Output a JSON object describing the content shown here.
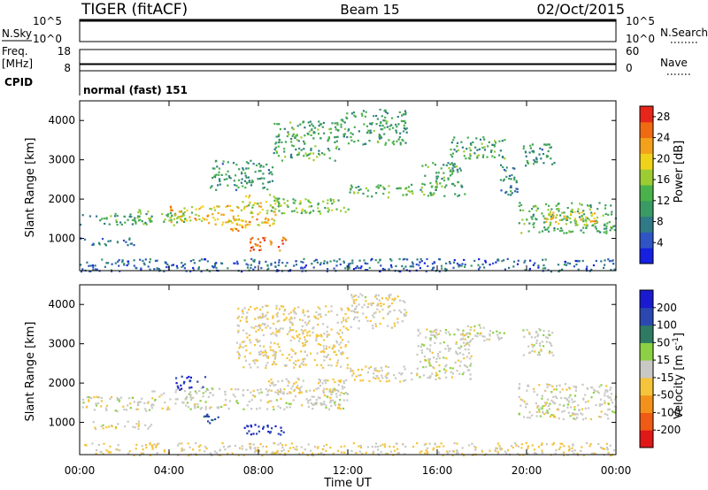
{
  "header": {
    "radar": "TIGER (fitACF)",
    "beam": "Beam 15",
    "date": "02/Oct/2015"
  },
  "top_panels": {
    "nsky": {
      "label": "N.Sky",
      "ticks": [
        "10^5",
        "10^0"
      ]
    },
    "nsearch": {
      "label": "N.Search",
      "ticks": [
        "10^5",
        "10^0"
      ]
    },
    "freq": {
      "label": "Freq.",
      "unit": "[MHz]",
      "ticks": [
        "18",
        "8"
      ]
    },
    "nave": {
      "label": "Nave",
      "ticks": [
        "60",
        "0"
      ]
    },
    "cpid": {
      "label": "CPID",
      "mode": "normal (fast) 151"
    }
  },
  "chart_data": [
    {
      "type": "heatmap",
      "name": "power",
      "ylabel": "Slant Range [km]",
      "xlabel": "",
      "y_ticks": [
        "4000",
        "3000",
        "2000",
        "1000"
      ],
      "ylim": [
        180,
        4500
      ],
      "xlim": [
        0,
        24
      ],
      "colorbar": {
        "label": "Power [dB]",
        "ticks": [
          "28",
          "24",
          "20",
          "16",
          "12",
          "8",
          "4"
        ],
        "range": [
          0,
          30
        ],
        "colors": [
          "#1520e0",
          "#2f55c4",
          "#2f7a86",
          "#3a9a63",
          "#4ab24a",
          "#9ccc32",
          "#f0d21a",
          "#f3a11a",
          "#ef6a12",
          "#e6261a"
        ]
      },
      "regions": [
        {
          "t0": 0.0,
          "t1": 3.2,
          "r0": 1350,
          "r1": 1650,
          "level": 11
        },
        {
          "t0": 0.0,
          "t1": 2.5,
          "r0": 850,
          "r1": 1050,
          "level": 7
        },
        {
          "t0": 2.5,
          "t1": 5.0,
          "r0": 1400,
          "r1": 1750,
          "level": 14
        },
        {
          "t0": 4.0,
          "t1": 8.8,
          "r0": 1350,
          "r1": 1850,
          "level": 20
        },
        {
          "t0": 6.2,
          "t1": 7.6,
          "r0": 1200,
          "r1": 1500,
          "level": 22
        },
        {
          "t0": 7.6,
          "t1": 9.2,
          "r0": 700,
          "r1": 1050,
          "level": 25
        },
        {
          "t0": 7.2,
          "t1": 9.0,
          "r0": 1800,
          "r1": 2150,
          "level": 18
        },
        {
          "t0": 8.5,
          "t1": 12.0,
          "r0": 1650,
          "r1": 2050,
          "level": 14
        },
        {
          "t0": 12.0,
          "t1": 14.9,
          "r0": 2050,
          "r1": 2400,
          "level": 13
        },
        {
          "t0": 5.8,
          "t1": 8.6,
          "r0": 2250,
          "r1": 3000,
          "level": 10
        },
        {
          "t0": 8.6,
          "t1": 11.6,
          "r0": 3000,
          "r1": 4000,
          "level": 12
        },
        {
          "t0": 11.6,
          "t1": 14.6,
          "r0": 3400,
          "r1": 4300,
          "level": 11
        },
        {
          "t0": 15.2,
          "t1": 17.2,
          "r0": 2100,
          "r1": 2950,
          "level": 12
        },
        {
          "t0": 16.5,
          "t1": 19.0,
          "r0": 3050,
          "r1": 3600,
          "level": 12
        },
        {
          "t0": 18.8,
          "t1": 19.6,
          "r0": 2100,
          "r1": 2900,
          "level": 9
        },
        {
          "t0": 19.6,
          "t1": 24.0,
          "r0": 1150,
          "r1": 1950,
          "level": 13
        },
        {
          "t0": 20.8,
          "t1": 23.2,
          "r0": 1350,
          "r1": 1700,
          "level": 20
        },
        {
          "t0": 19.8,
          "t1": 21.2,
          "r0": 2800,
          "r1": 3450,
          "level": 10
        },
        {
          "t0": 0.0,
          "t1": 24.0,
          "r0": 180,
          "r1": 500,
          "level": 6
        }
      ]
    },
    {
      "type": "heatmap",
      "name": "velocity",
      "ylabel": "Slant Range [km]",
      "xlabel": "Time UT",
      "x_ticks": [
        "00:00",
        "04:00",
        "08:00",
        "12:00",
        "16:00",
        "20:00",
        "00:00"
      ],
      "y_ticks": [
        "4000",
        "3000",
        "2000",
        "1000"
      ],
      "ylim": [
        180,
        4500
      ],
      "xlim": [
        0,
        24
      ],
      "colorbar": {
        "label": "Velocity [m s^-1]",
        "ticks": [
          "200",
          "100",
          "50",
          "15",
          "-15",
          "-50",
          "-100",
          "-200"
        ],
        "range": [
          -250,
          250
        ],
        "colors": [
          "#e01818",
          "#ef5a14",
          "#f3921a",
          "#f5c43a",
          "#c8c8c4",
          "#8cd043",
          "#2f7a63",
          "#2a48b0",
          "#1a1ad0"
        ]
      },
      "regions": [
        {
          "t0": 0.0,
          "t1": 3.2,
          "r0": 1300,
          "r1": 1700,
          "level": 0
        },
        {
          "t0": 0.5,
          "t1": 3.2,
          "r0": 850,
          "r1": 1050,
          "level": 0
        },
        {
          "t0": 3.2,
          "t1": 12.0,
          "r0": 1350,
          "r1": 1900,
          "level": 0
        },
        {
          "t0": 4.2,
          "t1": 5.6,
          "r0": 1850,
          "r1": 2200,
          "level": 180
        },
        {
          "t0": 5.4,
          "t1": 6.3,
          "r0": 1000,
          "r1": 1250,
          "level": 160
        },
        {
          "t0": 7.2,
          "t1": 9.2,
          "r0": 700,
          "r1": 1000,
          "level": 180
        },
        {
          "t0": 8.4,
          "t1": 12.0,
          "r0": 1750,
          "r1": 2150,
          "level": -30
        },
        {
          "t0": 12.0,
          "t1": 14.9,
          "r0": 2050,
          "r1": 2450,
          "level": -20
        },
        {
          "t0": 7.0,
          "t1": 12.0,
          "r0": 2400,
          "r1": 4000,
          "level": -30
        },
        {
          "t0": 12.0,
          "t1": 14.6,
          "r0": 3400,
          "r1": 4300,
          "level": -10
        },
        {
          "t0": 15.0,
          "t1": 17.5,
          "r0": 2100,
          "r1": 3400,
          "level": 0
        },
        {
          "t0": 17.0,
          "t1": 19.0,
          "r0": 3100,
          "r1": 3500,
          "level": 0
        },
        {
          "t0": 19.6,
          "t1": 24.0,
          "r0": 1100,
          "r1": 2000,
          "level": 0
        },
        {
          "t0": 19.8,
          "t1": 21.2,
          "r0": 2700,
          "r1": 3400,
          "level": 0
        },
        {
          "t0": 0.0,
          "t1": 24.0,
          "r0": 180,
          "r1": 500,
          "level": -30
        }
      ]
    }
  ]
}
